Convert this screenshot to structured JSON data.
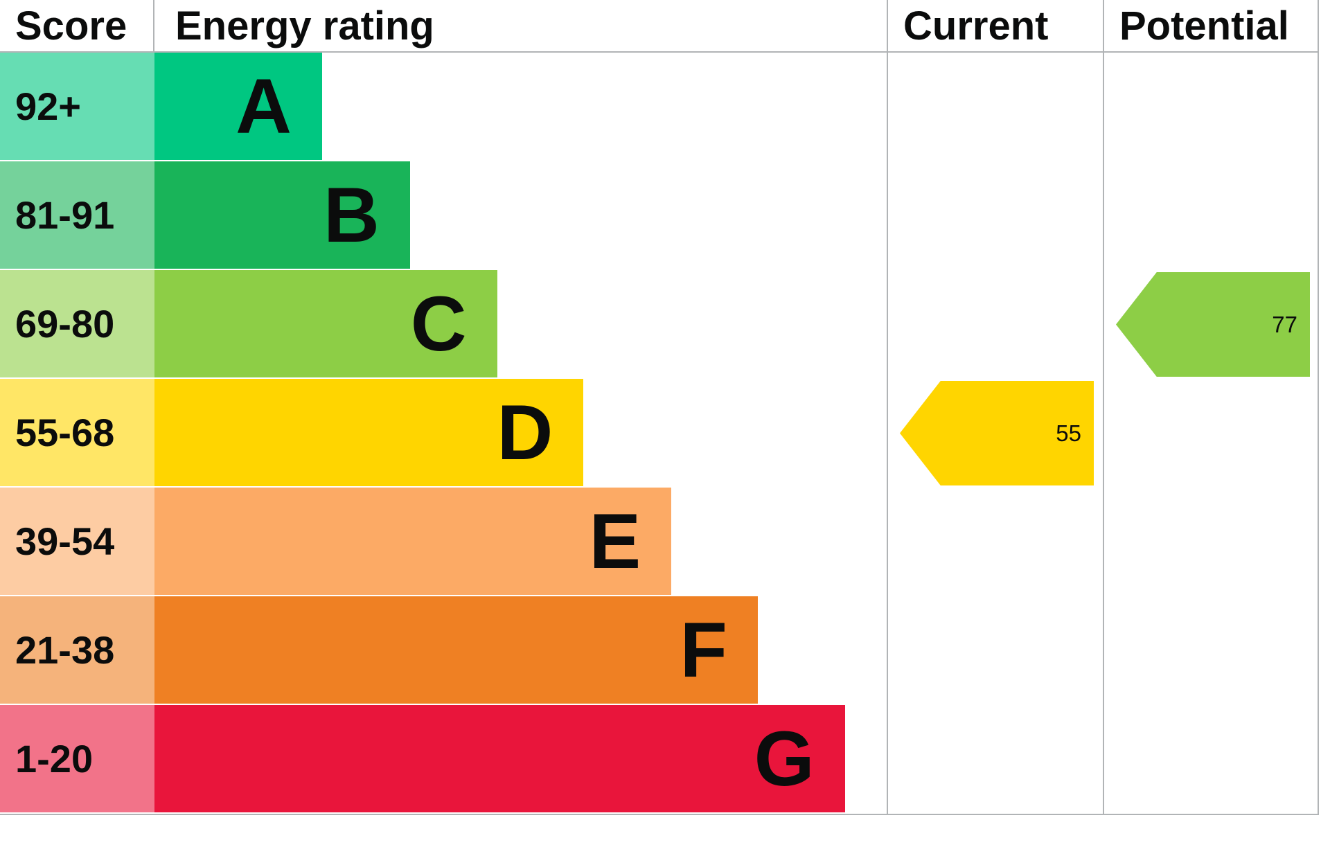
{
  "header": {
    "score": "Score",
    "energy_rating": "Energy rating",
    "current": "Current",
    "potential": "Potential"
  },
  "chart_data": {
    "type": "bar",
    "categories": [
      "A",
      "B",
      "C",
      "D",
      "E",
      "F",
      "G"
    ],
    "bands": [
      {
        "letter": "A",
        "score": "92+",
        "color": "#00c781",
        "tint": "#66ddb3",
        "width": "22.9%"
      },
      {
        "letter": "B",
        "score": "81-91",
        "color": "#19b459",
        "tint": "#75d29b",
        "width": "34.9%"
      },
      {
        "letter": "C",
        "score": "69-80",
        "color": "#8dce46",
        "tint": "#bbe290",
        "width": "46.8%"
      },
      {
        "letter": "D",
        "score": "55-68",
        "color": "#ffd500",
        "tint": "#ffe666",
        "width": "58.6%"
      },
      {
        "letter": "E",
        "score": "39-54",
        "color": "#fcaa65",
        "tint": "#fdcca3",
        "width": "70.6%"
      },
      {
        "letter": "F",
        "score": "21-38",
        "color": "#ef8023",
        "tint": "#f5b37b",
        "width": "82.4%"
      },
      {
        "letter": "G",
        "score": "1-20",
        "color": "#e9153b",
        "tint": "#f27389",
        "width": "94.3%"
      }
    ],
    "current": {
      "value": "55",
      "band": "D",
      "color": "#ffd500"
    },
    "potential": {
      "value": "77",
      "band": "C",
      "color": "#8dce46"
    }
  }
}
